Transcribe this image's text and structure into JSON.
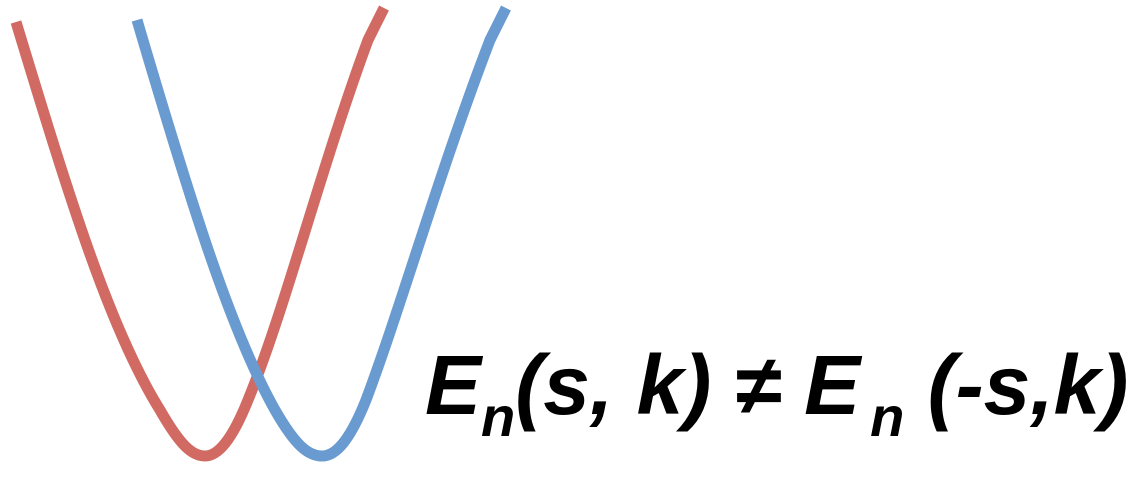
{
  "colors": {
    "curve_left": "#d16a62",
    "curve_right": "#6a9bd0",
    "text": "#000000"
  },
  "equation": {
    "lhs_symbol": "E",
    "lhs_subscript": "n",
    "lhs_args": "(s, k)",
    "operator": " ≠ ",
    "rhs_symbol": "E",
    "rhs_subscript": "n",
    "rhs_args": " (-s,k)"
  }
}
